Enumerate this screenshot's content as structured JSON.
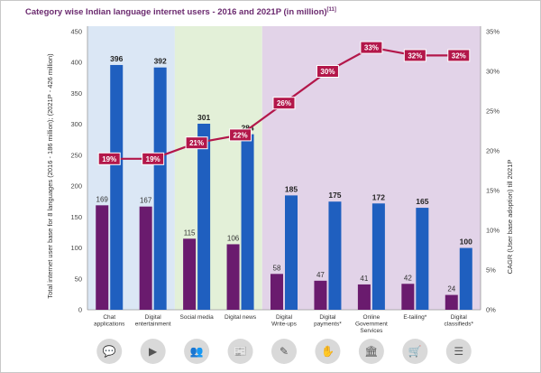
{
  "title": "Category wise Indian language internet users - 2016 and 2021P (in million)",
  "title_superscript": "[11]",
  "chart_data": {
    "type": "bar",
    "ylabel": "Total internet user base for 8 languages (2016 - 186 million); (2021P - 426 million)",
    "y2label": "CAGR (User base adoption) till 2021P",
    "ylim": [
      0,
      450
    ],
    "y2lim": [
      0,
      35
    ],
    "yticks": [
      "0",
      "50",
      "100",
      "150",
      "200",
      "250",
      "300",
      "350",
      "400",
      "450"
    ],
    "y2ticks": [
      "0%",
      "5%",
      "10%",
      "15%",
      "20%",
      "25%",
      "30%",
      "35%"
    ],
    "categories": [
      "Chat\napplications",
      "Digital\nentertainment",
      "Social media",
      "Digital news",
      "Digital\nWrite-ups",
      "Digital\npayments*",
      "Online\nGovernment\nServices",
      "E-tailing*",
      "Digital\nclassifieds*"
    ],
    "series": [
      {
        "values": [
          169,
          167,
          115,
          106,
          58,
          47,
          41,
          42,
          24
        ],
        "labels": [
          "169",
          "167",
          "115",
          "106",
          "58",
          "47",
          "41",
          "42",
          "24"
        ],
        "color": "#6a1b6e"
      },
      {
        "values": [
          396,
          392,
          301,
          284,
          185,
          175,
          172,
          165,
          100
        ],
        "labels": [
          "396",
          "392",
          "301",
          "284",
          "185",
          "175",
          "172",
          "165",
          "100"
        ],
        "color": "#1f5fbf"
      },
      {
        "type": "line",
        "axis": "right",
        "values": [
          19,
          19,
          21,
          22,
          26,
          30,
          33,
          32,
          32
        ],
        "labels": [
          "19%",
          "19%",
          "21%",
          "22%",
          "26%",
          "30%",
          "33%",
          "32%",
          "32%"
        ],
        "color": "#b3174a"
      }
    ],
    "bands": [
      {
        "from": 0,
        "to": 1,
        "color": "#dbe7f5"
      },
      {
        "from": 2,
        "to": 3,
        "color": "#e3f0d8"
      },
      {
        "from": 4,
        "to": 8,
        "color": "#e2d3e8"
      }
    ],
    "icons": [
      "chat-icon",
      "video-player-icon",
      "people-icon",
      "newspaper-icon",
      "pen-icon",
      "hand-payment-icon",
      "government-building-icon",
      "shopping-cart-icon",
      "classifieds-icon"
    ]
  }
}
